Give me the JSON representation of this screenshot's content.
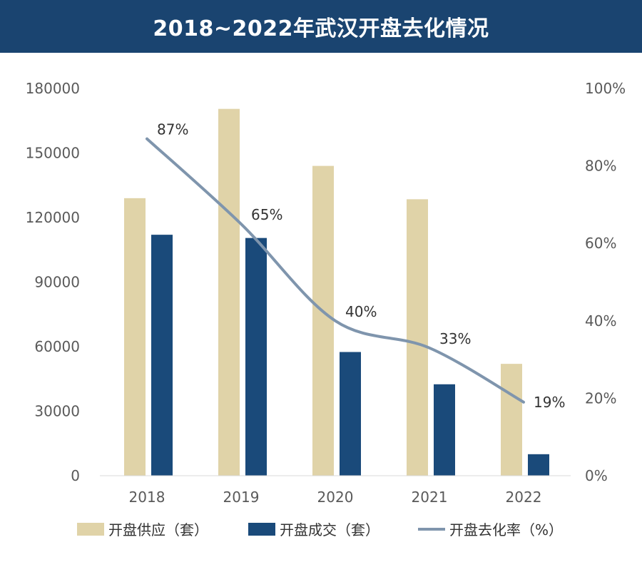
{
  "title": "2018~2022年武汉开盘去化情况",
  "colors": {
    "title_bg": "#1a4470",
    "supply": "#e0d3a8",
    "deals": "#1a4a7a",
    "rate_line": "#7f95ad",
    "axis_text": "#595959"
  },
  "chart_data": {
    "type": "bar",
    "categories": [
      "2018",
      "2019",
      "2020",
      "2021",
      "2022"
    ],
    "series": [
      {
        "name": "开盘供应（套）",
        "type": "bar",
        "axis": "left",
        "values": [
          129000,
          170500,
          144000,
          128500,
          52000
        ]
      },
      {
        "name": "开盘成交（套）",
        "type": "bar",
        "axis": "left",
        "values": [
          112000,
          110500,
          57500,
          42500,
          10000
        ]
      },
      {
        "name": "开盘去化率（%）",
        "type": "line",
        "axis": "right",
        "values": [
          87,
          65,
          40,
          33,
          19
        ],
        "labels": [
          "87%",
          "65%",
          "40%",
          "33%",
          "19%"
        ]
      }
    ],
    "left_axis": {
      "ylim": [
        0,
        180000
      ],
      "ticks": [
        "0",
        "30000",
        "60000",
        "90000",
        "120000",
        "150000",
        "180000"
      ]
    },
    "right_axis": {
      "ylim": [
        0,
        100
      ],
      "ticks": [
        "0%",
        "20%",
        "40%",
        "60%",
        "80%",
        "100%"
      ]
    },
    "grid": false,
    "legend": "bottom"
  }
}
